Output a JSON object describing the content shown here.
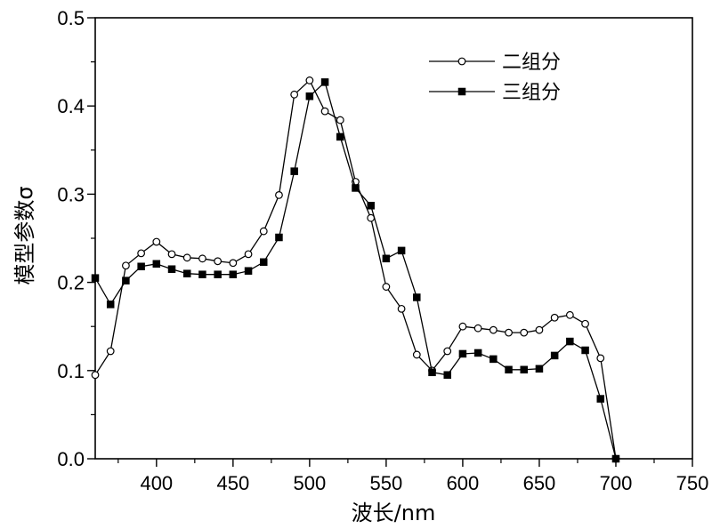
{
  "chart_data": {
    "type": "line",
    "xlabel": "波长/nm",
    "ylabel": "模型参数σ",
    "xlim": [
      360,
      750
    ],
    "ylim": [
      0,
      0.5
    ],
    "x_ticks": [
      400,
      450,
      500,
      550,
      600,
      650,
      700,
      750
    ],
    "x_tick_labels": [
      "400",
      "450",
      "500",
      "550",
      "600",
      "650",
      "700",
      "750"
    ],
    "y_ticks": [
      0,
      0.1,
      0.2,
      0.3,
      0.4,
      0.5
    ],
    "y_tick_labels": [
      "0.0",
      "0.1",
      "0.2",
      "0.3",
      "0.4",
      "0.5"
    ],
    "grid": false,
    "legend_position": "top-right",
    "series": [
      {
        "name": "二组分",
        "marker": "open-circle",
        "color": "#000000",
        "x": [
          360,
          370,
          380,
          390,
          400,
          410,
          420,
          430,
          440,
          450,
          460,
          470,
          480,
          490,
          500,
          510,
          520,
          530,
          540,
          550,
          560,
          570,
          580,
          590,
          600,
          610,
          620,
          630,
          640,
          650,
          660,
          670,
          680,
          690,
          700
        ],
        "y": [
          0.095,
          0.122,
          0.219,
          0.233,
          0.246,
          0.232,
          0.228,
          0.227,
          0.224,
          0.222,
          0.232,
          0.258,
          0.299,
          0.413,
          0.429,
          0.394,
          0.384,
          0.314,
          0.273,
          0.195,
          0.17,
          0.118,
          0.1,
          0.122,
          0.15,
          0.148,
          0.146,
          0.143,
          0.143,
          0.146,
          0.16,
          0.163,
          0.153,
          0.114,
          0.0
        ]
      },
      {
        "name": "三组分",
        "marker": "filled-square",
        "color": "#000000",
        "x": [
          360,
          370,
          380,
          390,
          400,
          410,
          420,
          430,
          440,
          450,
          460,
          470,
          480,
          490,
          500,
          510,
          520,
          530,
          540,
          550,
          560,
          570,
          580,
          590,
          600,
          610,
          620,
          630,
          640,
          650,
          660,
          670,
          680,
          690,
          700
        ],
        "y": [
          0.205,
          0.175,
          0.202,
          0.218,
          0.221,
          0.215,
          0.21,
          0.209,
          0.209,
          0.209,
          0.213,
          0.223,
          0.251,
          0.326,
          0.411,
          0.427,
          0.365,
          0.307,
          0.287,
          0.227,
          0.236,
          0.183,
          0.098,
          0.095,
          0.119,
          0.12,
          0.113,
          0.101,
          0.101,
          0.102,
          0.117,
          0.133,
          0.123,
          0.068,
          0.0
        ]
      }
    ]
  }
}
